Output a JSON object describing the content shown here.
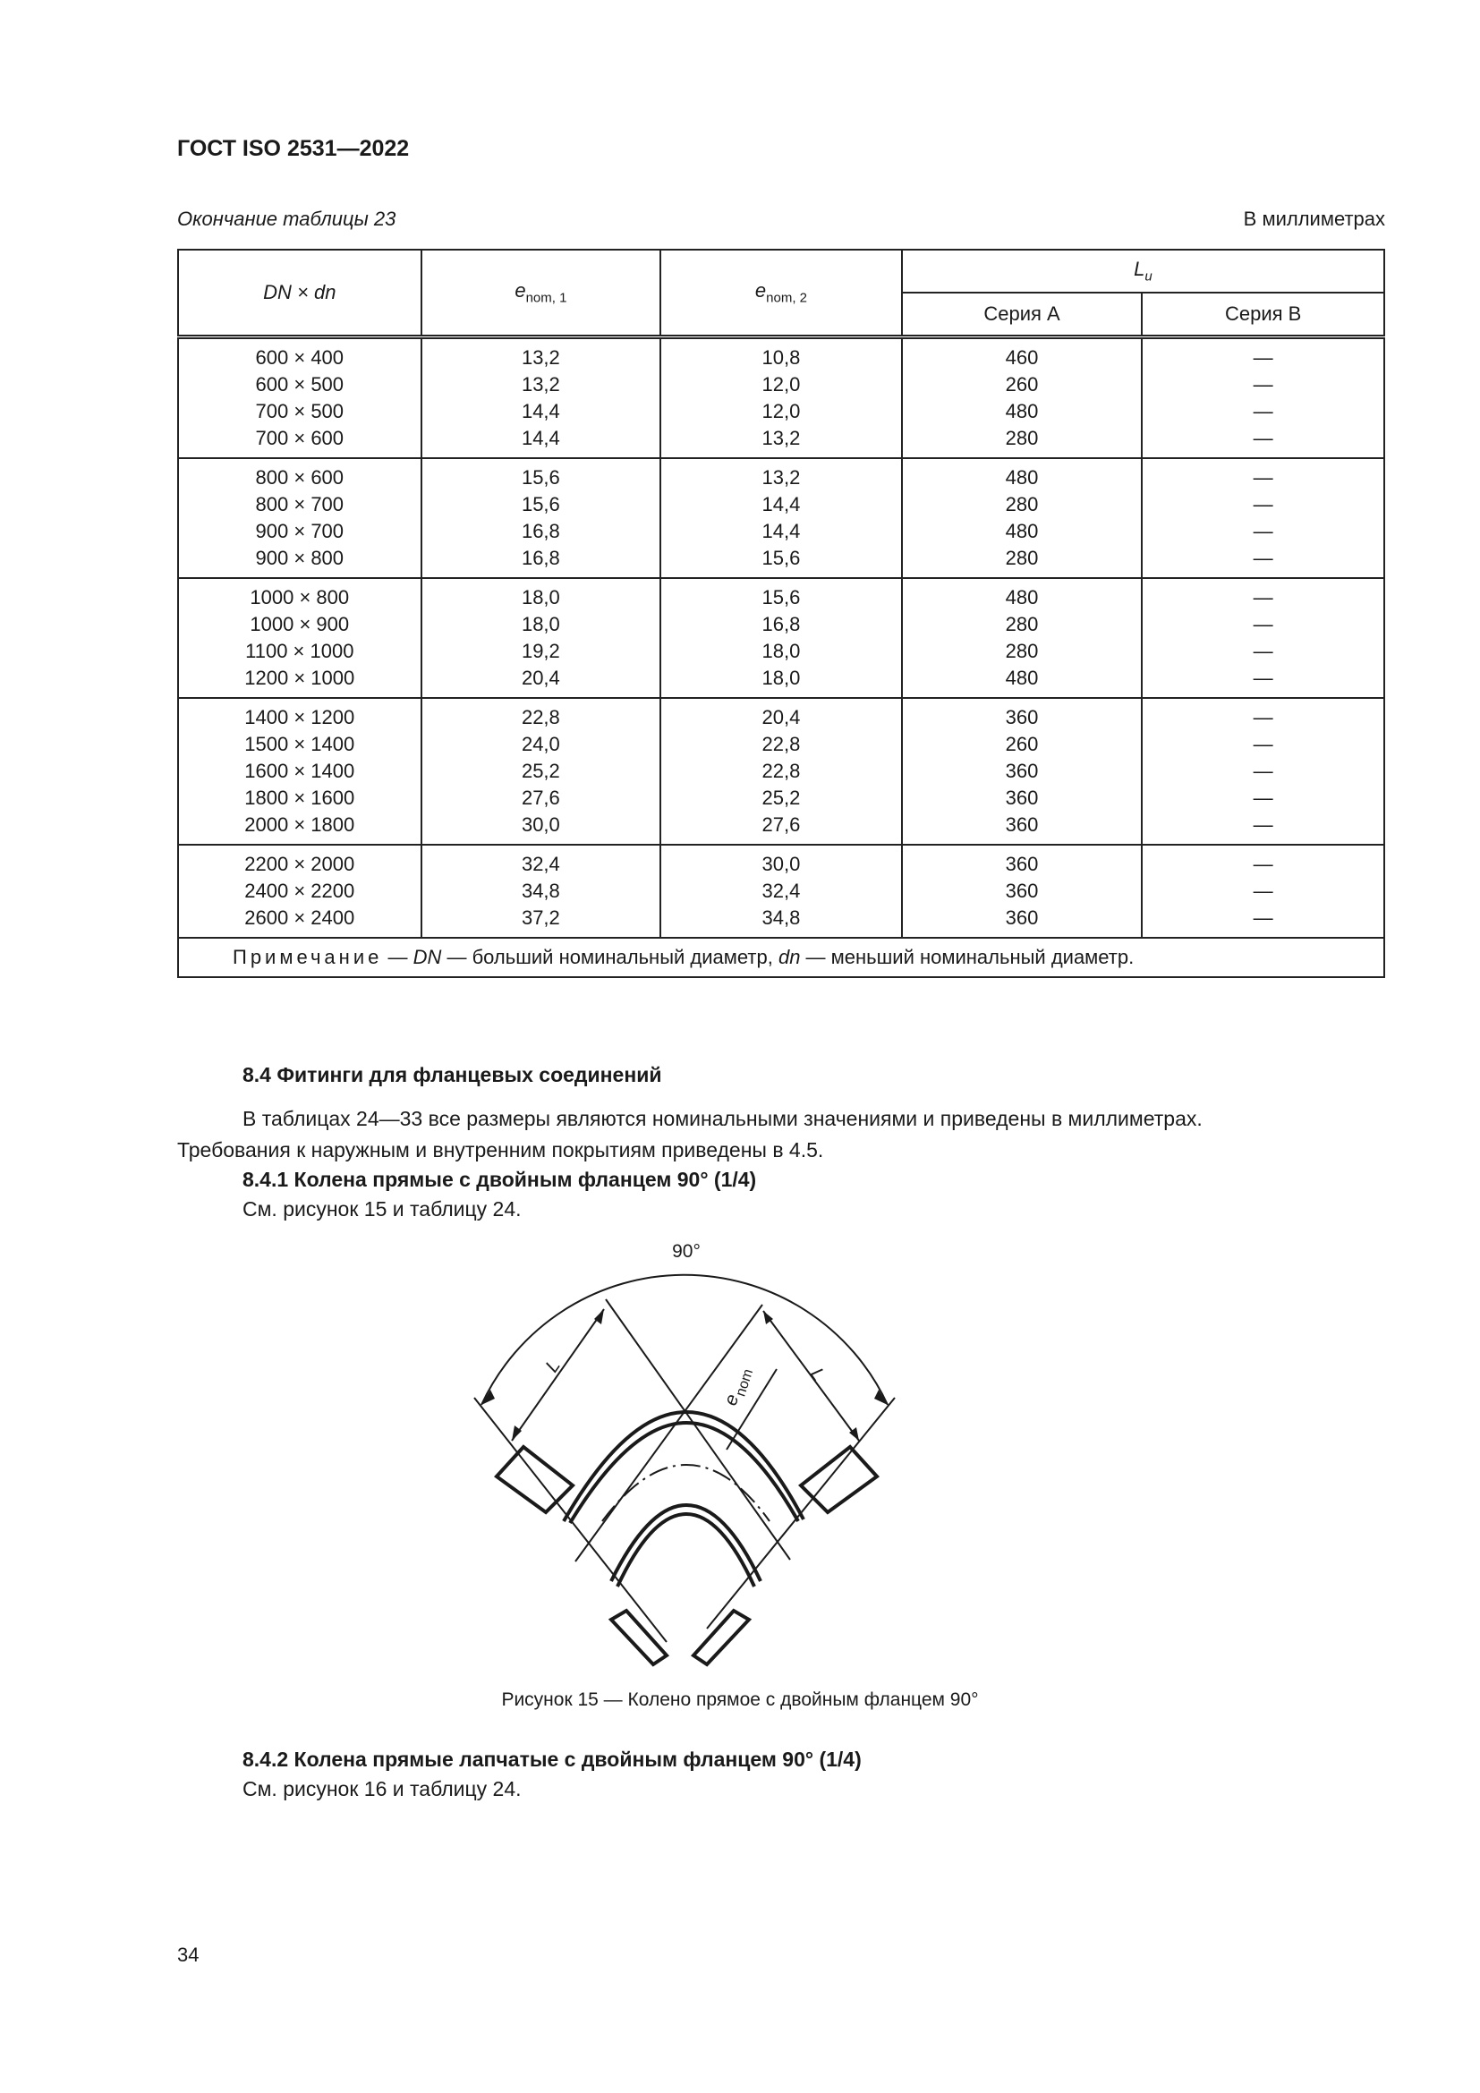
{
  "header": {
    "doc_code": "ГОСТ ISO 2531—2022"
  },
  "table": {
    "caption": "Окончание таблицы 23",
    "units": "В миллиметрах",
    "headers": {
      "dn": "DN × dn",
      "e1_base": "e",
      "e1_sub": "nom, 1",
      "e2_base": "e",
      "e2_sub": "nom, 2",
      "lu_base": "L",
      "lu_sub": "u",
      "series_a": "Серия А",
      "series_b": "Серия В"
    },
    "groups": [
      [
        [
          "600 × 400",
          "13,2",
          "10,8",
          "460",
          "—"
        ],
        [
          "600 × 500",
          "13,2",
          "12,0",
          "260",
          "—"
        ],
        [
          "700 × 500",
          "14,4",
          "12,0",
          "480",
          "—"
        ],
        [
          "700 × 600",
          "14,4",
          "13,2",
          "280",
          "—"
        ]
      ],
      [
        [
          "800 × 600",
          "15,6",
          "13,2",
          "480",
          "—"
        ],
        [
          "800 × 700",
          "15,6",
          "14,4",
          "280",
          "—"
        ],
        [
          "900 × 700",
          "16,8",
          "14,4",
          "480",
          "—"
        ],
        [
          "900 × 800",
          "16,8",
          "15,6",
          "280",
          "—"
        ]
      ],
      [
        [
          "1000 × 800",
          "18,0",
          "15,6",
          "480",
          "—"
        ],
        [
          "1000 × 900",
          "18,0",
          "16,8",
          "280",
          "—"
        ],
        [
          "1100 × 1000",
          "19,2",
          "18,0",
          "280",
          "—"
        ],
        [
          "1200 × 1000",
          "20,4",
          "18,0",
          "480",
          "—"
        ]
      ],
      [
        [
          "1400 × 1200",
          "22,8",
          "20,4",
          "360",
          "—"
        ],
        [
          "1500 × 1400",
          "24,0",
          "22,8",
          "260",
          "—"
        ],
        [
          "1600 × 1400",
          "25,2",
          "22,8",
          "360",
          "—"
        ],
        [
          "1800 × 1600",
          "27,6",
          "25,2",
          "360",
          "—"
        ],
        [
          "2000 × 1800",
          "30,0",
          "27,6",
          "360",
          "—"
        ]
      ],
      [
        [
          "2200 × 2000",
          "32,4",
          "30,0",
          "360",
          "—"
        ],
        [
          "2400 × 2200",
          "34,8",
          "32,4",
          "360",
          "—"
        ],
        [
          "2600 × 2400",
          "37,2",
          "34,8",
          "360",
          "—"
        ]
      ]
    ],
    "note": {
      "label": "Примечание",
      "dash1": " — ",
      "dn": "DN",
      "text1": " — больший номинальный диаметр, ",
      "dn_small": "dn",
      "text2": " — меньший номинальный диаметр."
    }
  },
  "section": {
    "heading": "8.4 Фитинги для фланцевых соединений",
    "para1": "В таблицах 24—33 все размеры являются номинальными значениями и приведены в миллиметрах.",
    "para2": "Требования к наружным и внутренним покрытиям приведены в 4.5.",
    "sub1_heading": "8.4.1 Колена прямые с двойным фланцем 90° (1/4)",
    "sub1_ref": "См. рисунок 15 и таблицу 24.",
    "figure": {
      "angle_label": "90°",
      "l_label": "L",
      "e_base": "e",
      "e_sub": "nom",
      "caption": "Рисунок 15 — Колено прямое с двойным фланцем 90°"
    },
    "sub2_heading": "8.4.2 Колена прямые лапчатые с двойным фланцем 90° (1/4)",
    "sub2_ref": "См. рисунок 16 и таблицу 24."
  },
  "page_number": "34"
}
